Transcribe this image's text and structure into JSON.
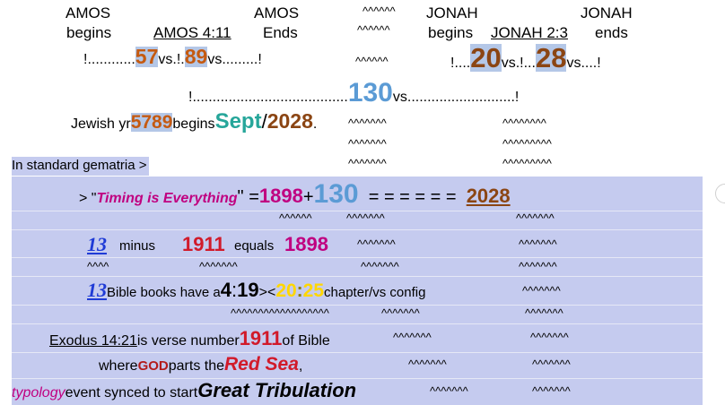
{
  "header": {
    "amos_begins_top": "AMOS",
    "amos_begins_bottom": "begins",
    "amos_ref": "AMOS 4:11",
    "amos_ends_top": "AMOS",
    "amos_ends_bottom": "Ends",
    "carets_top1": "^^^^^^",
    "carets_top2": "^^^^^^",
    "jonah_begins_top": "JONAH",
    "jonah_begins_bottom": "begins",
    "jonah_ref": "JONAH 2:3",
    "jonah_ends_top": "JONAH",
    "jonah_ends_bottom": "ends"
  },
  "row_verses": {
    "lead": "!............",
    "amos_a": "57",
    "vs1": " vs.!.",
    "amos_b": "89",
    "tail1": " vs.........!",
    "carets": "^^^^^^",
    "jonah_lead": "!....",
    "jonah_a": "20",
    "vs2": " vs.!...",
    "jonah_b": "28",
    "tail2": " vs....!"
  },
  "row_total": {
    "lead": "!.......................................",
    "num": "130",
    "tail": " vs...........................!"
  },
  "row_year": {
    "prefix": "Jewish yr ",
    "year": "5789",
    "begins": " begins ",
    "month": "Sept",
    "slash": "/",
    "greg": "2028",
    "dot": ".",
    "carets_a": "^^^^^^^",
    "carets_b": "^^^^^^^^"
  },
  "carets_rows": {
    "r1a": "^^^^^^^",
    "r1b": "^^^^^^^^^",
    "r2a": "^^^^^^^",
    "r2b": "^^^^^^^^^"
  },
  "gematria_label": "In standard gematria >",
  "timing": {
    "gt": "> \"",
    "phrase": "Timing is Everything",
    "close": "\" = ",
    "v1898": "1898",
    "plus": " + ",
    "v130": "130",
    "equals": "  = = = = = =  ",
    "v2028": "2028",
    "carets_a": "^^^^^^",
    "carets_b": "^^^^^^^",
    "carets_c": "^^^^^^^"
  },
  "minus_row": {
    "n13": "13",
    "minus": "minus",
    "v1911": "1911",
    "equals": "equals",
    "v1898": "1898",
    "carets_a": "^^^^^^^",
    "carets_b": "^^^^^^^",
    "sub_a": "^^^^",
    "sub_b": "^^^^^^^",
    "sub_c": "^^^^^^^",
    "sub_d": "^^^^^^^"
  },
  "books_row": {
    "n13": "13",
    "text": " Bible books have a ",
    "n4": "4",
    "colon1": ":",
    "n19": "19",
    "angle": "><",
    "n20": "20",
    "colon2": ":",
    "n25": "25",
    "tail": " chapter/vs config",
    "carets_a": "^^^^^^^",
    "sub_a": "^^^^^^^^^^^^^^^^^^",
    "sub_b": "^^^^^^^",
    "sub_c": "^^^^^^^"
  },
  "exodus_row": {
    "ref": "Exodus 14:21",
    "text": " is verse number ",
    "num": "1911",
    "tail": " of Bible",
    "carets_a": "^^^^^^^",
    "carets_b": "^^^^^^^"
  },
  "god_row": {
    "where": "where ",
    "god": "GOD",
    "parts": " parts the ",
    "sea": "Red Sea",
    "comma": ",",
    "carets_a": "^^^^^^^",
    "carets_b": "^^^^^^^"
  },
  "typology_row": {
    "typology": "typology",
    "text": " event synced to start ",
    "great": "Great Tribulation",
    "carets_a": "^^^^^^^",
    "carets_b": "^^^^^^^"
  }
}
